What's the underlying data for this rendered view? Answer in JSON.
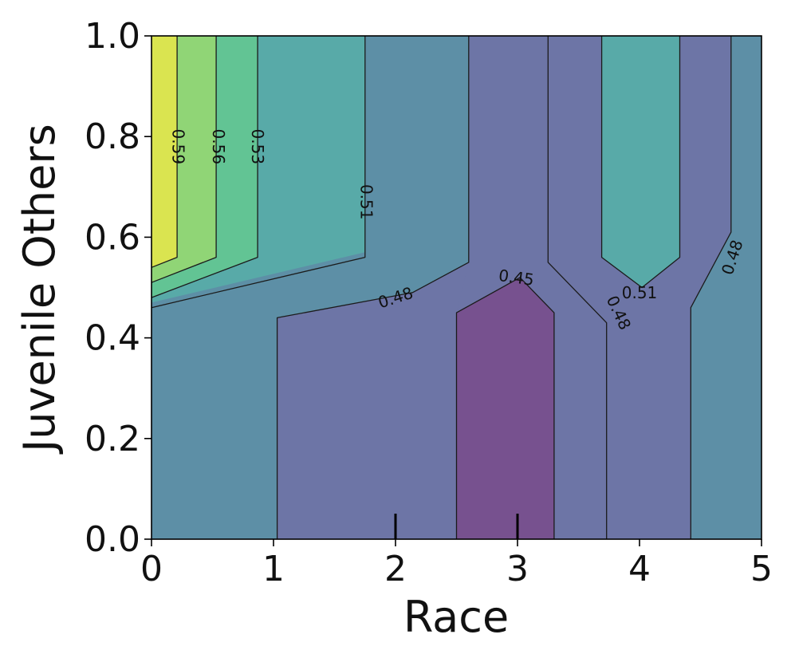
{
  "chart_data": {
    "type": "contourf",
    "title": "",
    "xlabel": "Race",
    "ylabel": "Juvenile Others",
    "xlim": [
      0,
      5
    ],
    "ylim": [
      0.0,
      1.0
    ],
    "x_ticks": [
      "0",
      "1",
      "2",
      "3",
      "4",
      "5"
    ],
    "y_ticks": [
      "0.0",
      "0.2",
      "0.4",
      "0.6",
      "0.8",
      "1.0"
    ],
    "grid": false,
    "legend": "none",
    "colormap": "viridis",
    "rug_marks_x": [
      2,
      3
    ],
    "contour_levels": [
      0.45,
      0.48,
      0.51,
      0.53,
      0.56,
      0.59
    ],
    "colors": {
      "below_0.45": "#77518f",
      "0.45-0.48": "#6d75a6",
      "0.48-0.51": "#5d8fa6",
      "0.51-0.53": "#58aaa8",
      "0.53-0.56": "#62c494",
      "0.56-0.59": "#90d576",
      "above_0.59": "#dae450"
    },
    "contour_labels": [
      {
        "text": "0.59",
        "x": 0.22,
        "y": 0.78
      },
      {
        "text": "0.56",
        "x": 0.55,
        "y": 0.78
      },
      {
        "text": "0.53",
        "x": 0.87,
        "y": 0.78
      },
      {
        "text": "0.51",
        "x": 1.76,
        "y": 0.67
      },
      {
        "text": "0.48",
        "x": 2.0,
        "y": 0.48
      },
      {
        "text": "0.45",
        "x": 2.99,
        "y": 0.52
      },
      {
        "text": "0.48",
        "x": 3.83,
        "y": 0.45
      },
      {
        "text": "0.51",
        "x": 4.0,
        "y": 0.49
      },
      {
        "text": "0.48",
        "x": 4.76,
        "y": 0.56
      }
    ],
    "regions": [
      {
        "level": "0.48-0.51",
        "points": [
          [
            0,
            0
          ],
          [
            5,
            0
          ],
          [
            5,
            1
          ],
          [
            0,
            1
          ]
        ]
      },
      {
        "level": "0.45-0.48",
        "points": [
          [
            1.03,
            0
          ],
          [
            4.42,
            0
          ],
          [
            4.42,
            0.46
          ],
          [
            4.75,
            0.61
          ],
          [
            4.75,
            1
          ],
          [
            2.6,
            1
          ],
          [
            2.6,
            0.55
          ],
          [
            2.14,
            0.49
          ],
          [
            1.03,
            0.44
          ]
        ]
      },
      {
        "level": "0.45-0.48",
        "points": [
          [
            2.5,
            0
          ],
          [
            3.73,
            0
          ],
          [
            3.73,
            0.43
          ],
          [
            3.25,
            0.55
          ],
          [
            3.25,
            1
          ],
          [
            2.6,
            1
          ],
          [
            2.6,
            0.55
          ],
          [
            2.5,
            0.45
          ]
        ]
      },
      {
        "level": "below_0.45",
        "points": [
          [
            2.5,
            0
          ],
          [
            3.3,
            0
          ],
          [
            3.3,
            0.45
          ],
          [
            3.02,
            0.52
          ],
          [
            2.5,
            0.45
          ]
        ]
      },
      {
        "level": "0.51-0.53",
        "points": [
          [
            0,
            0.47
          ],
          [
            1.75,
            0.57
          ],
          [
            1.75,
            1
          ],
          [
            0,
            1
          ]
        ]
      },
      {
        "level": "0.51-0.53",
        "points": [
          [
            3.69,
            0.56
          ],
          [
            4.02,
            0.5
          ],
          [
            4.33,
            0.56
          ],
          [
            4.33,
            1
          ],
          [
            3.69,
            1
          ]
        ]
      },
      {
        "level": "0.53-0.56",
        "points": [
          [
            0,
            0.48
          ],
          [
            0.87,
            0.56
          ],
          [
            0.87,
            1
          ],
          [
            0,
            1
          ]
        ]
      },
      {
        "level": "0.56-0.59",
        "points": [
          [
            0,
            0.51
          ],
          [
            0.53,
            0.56
          ],
          [
            0.53,
            1
          ],
          [
            0,
            1
          ]
        ]
      },
      {
        "level": "above_0.59",
        "points": [
          [
            0,
            0.54
          ],
          [
            0.21,
            0.56
          ],
          [
            0.21,
            1
          ],
          [
            0,
            1
          ]
        ]
      }
    ],
    "contour_lines": [
      {
        "level": 0.59,
        "points": [
          [
            0,
            0.54
          ],
          [
            0.21,
            0.56
          ],
          [
            0.21,
            1
          ]
        ]
      },
      {
        "level": 0.56,
        "points": [
          [
            0,
            0.51
          ],
          [
            0.53,
            0.56
          ],
          [
            0.53,
            1
          ]
        ]
      },
      {
        "level": 0.53,
        "points": [
          [
            0,
            0.48
          ],
          [
            0.87,
            0.56
          ],
          [
            0.87,
            1
          ]
        ]
      },
      {
        "level": 0.51,
        "points": [
          [
            0,
            0.46
          ],
          [
            1.75,
            0.56
          ],
          [
            1.75,
            1
          ]
        ]
      },
      {
        "level": 0.48,
        "points": [
          [
            1.03,
            0
          ],
          [
            1.03,
            0.44
          ],
          [
            2.14,
            0.49
          ],
          [
            2.6,
            0.55
          ],
          [
            2.6,
            1
          ]
        ]
      },
      {
        "level": 0.48,
        "points": [
          [
            3.73,
            0
          ],
          [
            3.73,
            0.43
          ],
          [
            3.25,
            0.55
          ],
          [
            3.25,
            1
          ]
        ]
      },
      {
        "level": 0.48,
        "points": [
          [
            4.42,
            0
          ],
          [
            4.42,
            0.46
          ],
          [
            4.75,
            0.61
          ],
          [
            4.75,
            1
          ]
        ]
      },
      {
        "level": 0.45,
        "points": [
          [
            2.5,
            0
          ],
          [
            2.5,
            0.45
          ],
          [
            3.02,
            0.52
          ],
          [
            3.3,
            0.45
          ],
          [
            3.3,
            0
          ]
        ]
      },
      {
        "level": 0.51,
        "points": [
          [
            3.69,
            1
          ],
          [
            3.69,
            0.56
          ],
          [
            4.02,
            0.5
          ],
          [
            4.33,
            0.56
          ],
          [
            4.33,
            1
          ]
        ]
      }
    ]
  }
}
